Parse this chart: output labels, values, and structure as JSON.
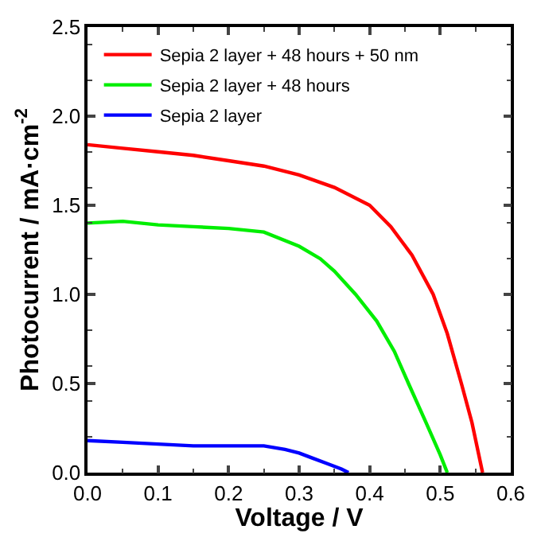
{
  "chart_data": {
    "type": "line",
    "xlabel": "Voltage / V",
    "ylabel": "Photocurrent / mA·cm$^{-2}$",
    "xlim": [
      0,
      0.6
    ],
    "xticks": [
      {
        "value": 0,
        "label": "0.0"
      },
      0.1,
      0.2,
      0.3,
      0.4,
      0.5,
      0.6
    ],
    "ylim": [
      0,
      2.5
    ],
    "yticks": [
      {
        "value": 0,
        "label": "0.0"
      },
      0.5,
      {
        "value": 1,
        "label": "1.0"
      },
      1.5,
      {
        "value": 2,
        "label": "2.0"
      },
      2.5
    ],
    "legend": "top left",
    "marker": "none",
    "line_style": "solid",
    "series": [
      {
        "name": "Sepia 2 layer + 48 hours + 50 nm",
        "color": "#ff0000",
        "x": [
          0,
          0.05,
          0.1,
          0.15,
          0.2,
          0.25,
          0.3,
          0.35,
          0.4,
          0.43,
          0.46,
          0.49,
          0.51,
          0.53,
          0.545,
          0.56
        ],
        "values": [
          1.84,
          1.82,
          1.8,
          1.78,
          1.75,
          1.72,
          1.67,
          1.6,
          1.5,
          1.38,
          1.22,
          1.0,
          0.78,
          0.5,
          0.28,
          0
        ]
      },
      {
        "name": "Sepia 2 layer + 48 hours",
        "color": "#00ee00",
        "x": [
          0,
          0.05,
          0.1,
          0.15,
          0.2,
          0.25,
          0.3,
          0.33,
          0.35,
          0.38,
          0.41,
          0.435,
          0.455,
          0.48,
          0.5,
          0.51
        ],
        "values": [
          1.4,
          1.41,
          1.39,
          1.38,
          1.37,
          1.35,
          1.27,
          1.2,
          1.13,
          1.0,
          0.85,
          0.68,
          0.5,
          0.28,
          0.1,
          0
        ]
      },
      {
        "name": "Sepia 2 layer",
        "color": "#0000ff",
        "x": [
          0,
          0.05,
          0.1,
          0.15,
          0.2,
          0.25,
          0.28,
          0.3,
          0.32,
          0.34,
          0.36,
          0.37
        ],
        "values": [
          0.18,
          0.17,
          0.16,
          0.15,
          0.15,
          0.15,
          0.13,
          0.11,
          0.08,
          0.05,
          0.02,
          0
        ]
      }
    ]
  }
}
